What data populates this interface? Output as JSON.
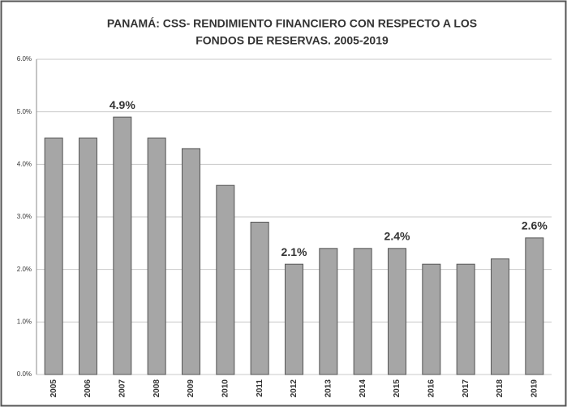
{
  "chart_data": {
    "type": "bar",
    "title": [
      "PANAMÁ:  CSS- RENDIMIENTO FINANCIERO CON RESPECTO A LOS",
      "FONDOS DE RESERVAS. 2005-2019"
    ],
    "categories": [
      "2005",
      "2006",
      "2007",
      "2008",
      "2009",
      "2010",
      "2011",
      "2012",
      "2013",
      "2014",
      "2015",
      "2016",
      "2017",
      "2018",
      "2019"
    ],
    "values": [
      4.5,
      4.5,
      4.9,
      4.5,
      4.3,
      3.6,
      2.9,
      2.1,
      2.4,
      2.4,
      2.4,
      2.1,
      2.1,
      2.2,
      2.6
    ],
    "value_labels": [
      null,
      null,
      "4.9%",
      null,
      null,
      null,
      null,
      "2.1%",
      null,
      null,
      "2.4%",
      null,
      null,
      null,
      "2.6%"
    ],
    "color": "#a6a6a6",
    "ylim": [
      0,
      6
    ],
    "yticks": [
      {
        "value": 0,
        "label": "0.0%"
      },
      {
        "value": 1,
        "label": "1.0%"
      },
      {
        "value": 2,
        "label": "2.0%"
      },
      {
        "value": 3,
        "label": "3.0%"
      },
      {
        "value": 4,
        "label": "4.0%"
      },
      {
        "value": 5,
        "label": "5.0%"
      },
      {
        "value": 6,
        "label": "6.0%"
      }
    ],
    "grid": true
  }
}
